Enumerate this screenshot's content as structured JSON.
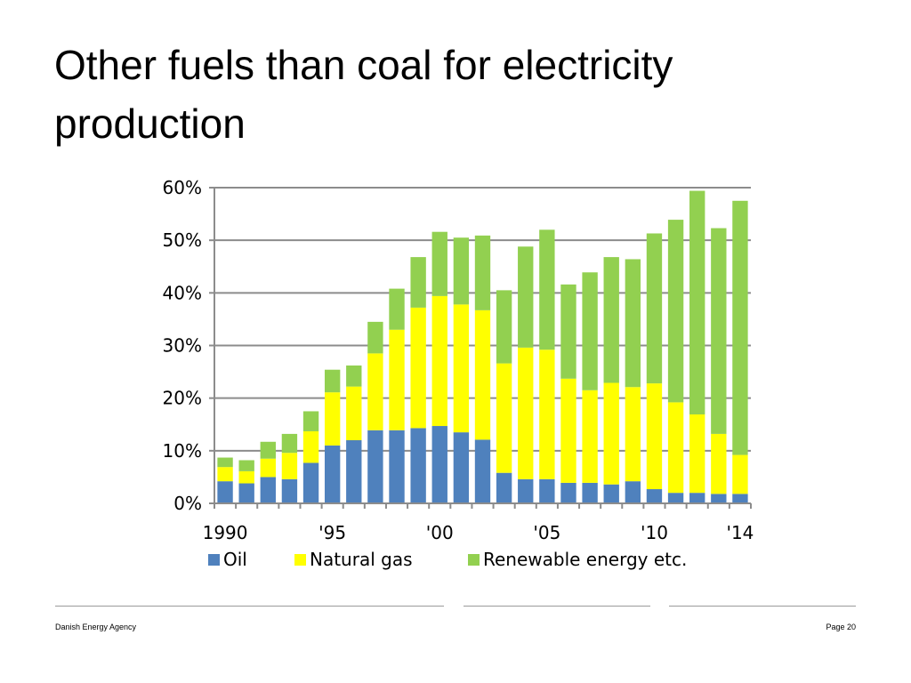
{
  "slide": {
    "title_line1": "Other fuels than coal for electricity",
    "title_line2": "production",
    "footer_left": "Danish Energy Agency",
    "footer_right": "Page 20"
  },
  "chart_data": {
    "type": "bar",
    "stacked": true,
    "x": [
      1990,
      1991,
      1992,
      1993,
      1994,
      1995,
      1996,
      1997,
      1998,
      1999,
      2000,
      2001,
      2002,
      2003,
      2004,
      2005,
      2006,
      2007,
      2008,
      2009,
      2010,
      2011,
      2012,
      2013,
      2014
    ],
    "tick_labels": [
      "1990",
      "'95",
      "'00",
      "'05",
      "'10",
      "'14"
    ],
    "tick_years": [
      1990,
      1995,
      2000,
      2005,
      2010,
      2014
    ],
    "ylim": [
      0,
      60
    ],
    "yticks": [
      "0%",
      "10%",
      "20%",
      "30%",
      "40%",
      "50%",
      "60%"
    ],
    "grid": true,
    "legend_position": "bottom",
    "series": [
      {
        "name": "Oil",
        "color": "#4f81bd",
        "values": [
          4.2,
          3.8,
          5.0,
          4.6,
          7.7,
          11.0,
          12.0,
          13.9,
          13.9,
          14.3,
          14.7,
          13.5,
          12.1,
          5.8,
          4.6,
          4.6,
          3.9,
          3.9,
          3.6,
          4.2,
          2.7,
          2.0,
          2.0,
          1.8,
          1.8
        ]
      },
      {
        "name": "Natural gas",
        "color": "#ffff00",
        "values": [
          2.7,
          2.3,
          3.5,
          5.0,
          6.0,
          10.1,
          10.2,
          14.6,
          19.1,
          22.9,
          24.7,
          24.3,
          24.6,
          20.8,
          25.0,
          24.6,
          19.8,
          17.6,
          19.3,
          17.9,
          20.1,
          17.2,
          14.9,
          11.4,
          7.4
        ]
      },
      {
        "name": "Renewable energy etc.",
        "color": "#92d050",
        "values": [
          1.8,
          2.1,
          3.2,
          3.6,
          3.8,
          4.3,
          4.0,
          6.0,
          7.8,
          9.6,
          12.2,
          12.7,
          14.2,
          13.9,
          19.2,
          22.8,
          17.9,
          22.4,
          23.9,
          24.3,
          28.5,
          34.7,
          42.5,
          39.1,
          48.3
        ]
      }
    ]
  }
}
